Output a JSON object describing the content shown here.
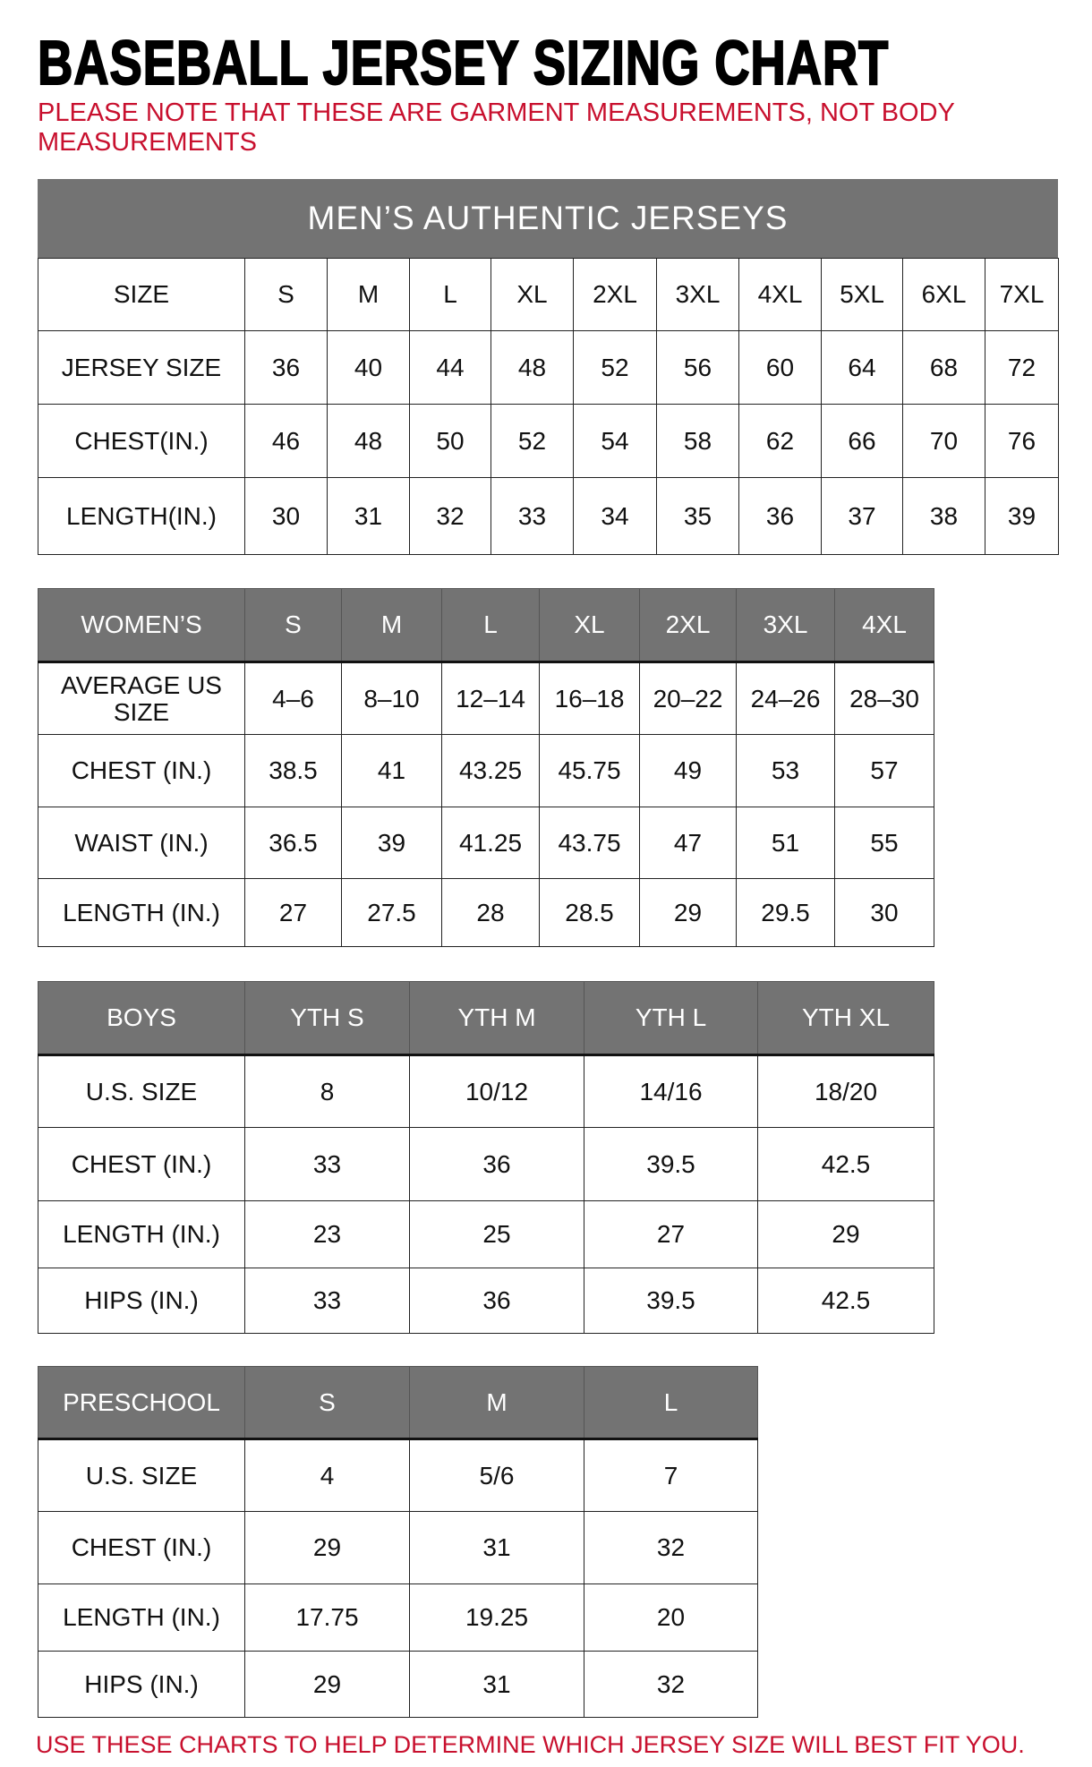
{
  "title": "BASEBALL JERSEY SIZING CHART",
  "note": "PLEASE NOTE THAT THESE ARE GARMENT MEASUREMENTS, NOT BODY MEASUREMENTS",
  "footer": "USE THESE CHARTS TO HELP DETERMINE WHICH JERSEY SIZE WILL BEST FIT YOU.",
  "colors": {
    "header_bg": "#737373",
    "note_red": "#c8102e"
  },
  "tables": [
    {
      "id": "mens",
      "banner": "MEN’S AUTHENTIC JERSEYS",
      "header": [
        "SIZE",
        "S",
        "M",
        "L",
        "XL",
        "2XL",
        "3XL",
        "4XL",
        "5XL",
        "6XL",
        "7XL"
      ],
      "header_style": "plain",
      "rows": [
        [
          "JERSEY SIZE",
          "36",
          "40",
          "44",
          "48",
          "52",
          "56",
          "60",
          "64",
          "68",
          "72"
        ],
        [
          "CHEST(IN.)",
          "46",
          "48",
          "50",
          "52",
          "54",
          "58",
          "62",
          "66",
          "70",
          "76"
        ],
        [
          "LENGTH(IN.)",
          "30",
          "31",
          "32",
          "33",
          "34",
          "35",
          "36",
          "37",
          "38",
          "39"
        ]
      ]
    },
    {
      "id": "womens",
      "header": [
        "WOMEN’S",
        "S",
        "M",
        "L",
        "XL",
        "2XL",
        "3XL",
        "4XL"
      ],
      "header_style": "gray",
      "rows": [
        [
          "AVERAGE US SIZE",
          "4–6",
          "8–10",
          "12–14",
          "16–18",
          "20–22",
          "24–26",
          "28–30"
        ],
        [
          "CHEST (IN.)",
          "38.5",
          "41",
          "43.25",
          "45.75",
          "49",
          "53",
          "57"
        ],
        [
          "WAIST (IN.)",
          "36.5",
          "39",
          "41.25",
          "43.75",
          "47",
          "51",
          "55"
        ],
        [
          "LENGTH (IN.)",
          "27",
          "27.5",
          "28",
          "28.5",
          "29",
          "29.5",
          "30"
        ]
      ]
    },
    {
      "id": "boys",
      "header": [
        "BOYS",
        "YTH S",
        "YTH M",
        "YTH L",
        "YTH XL"
      ],
      "header_style": "gray",
      "rows": [
        [
          "U.S. SIZE",
          "8",
          "10/12",
          "14/16",
          "18/20"
        ],
        [
          "CHEST (IN.)",
          "33",
          "36",
          "39.5",
          "42.5"
        ],
        [
          "LENGTH (IN.)",
          "23",
          "25",
          "27",
          "29"
        ],
        [
          "HIPS (IN.)",
          "33",
          "36",
          "39.5",
          "42.5"
        ]
      ]
    },
    {
      "id": "preschool",
      "header": [
        "PRESCHOOL",
        "S",
        "M",
        "L"
      ],
      "header_style": "gray",
      "rows": [
        [
          "U.S. SIZE",
          "4",
          "5/6",
          "7"
        ],
        [
          "CHEST (IN.)",
          "29",
          "31",
          "32"
        ],
        [
          "LENGTH (IN.)",
          "17.75",
          "19.25",
          "20"
        ],
        [
          "HIPS (IN.)",
          "29",
          "31",
          "32"
        ]
      ]
    }
  ]
}
